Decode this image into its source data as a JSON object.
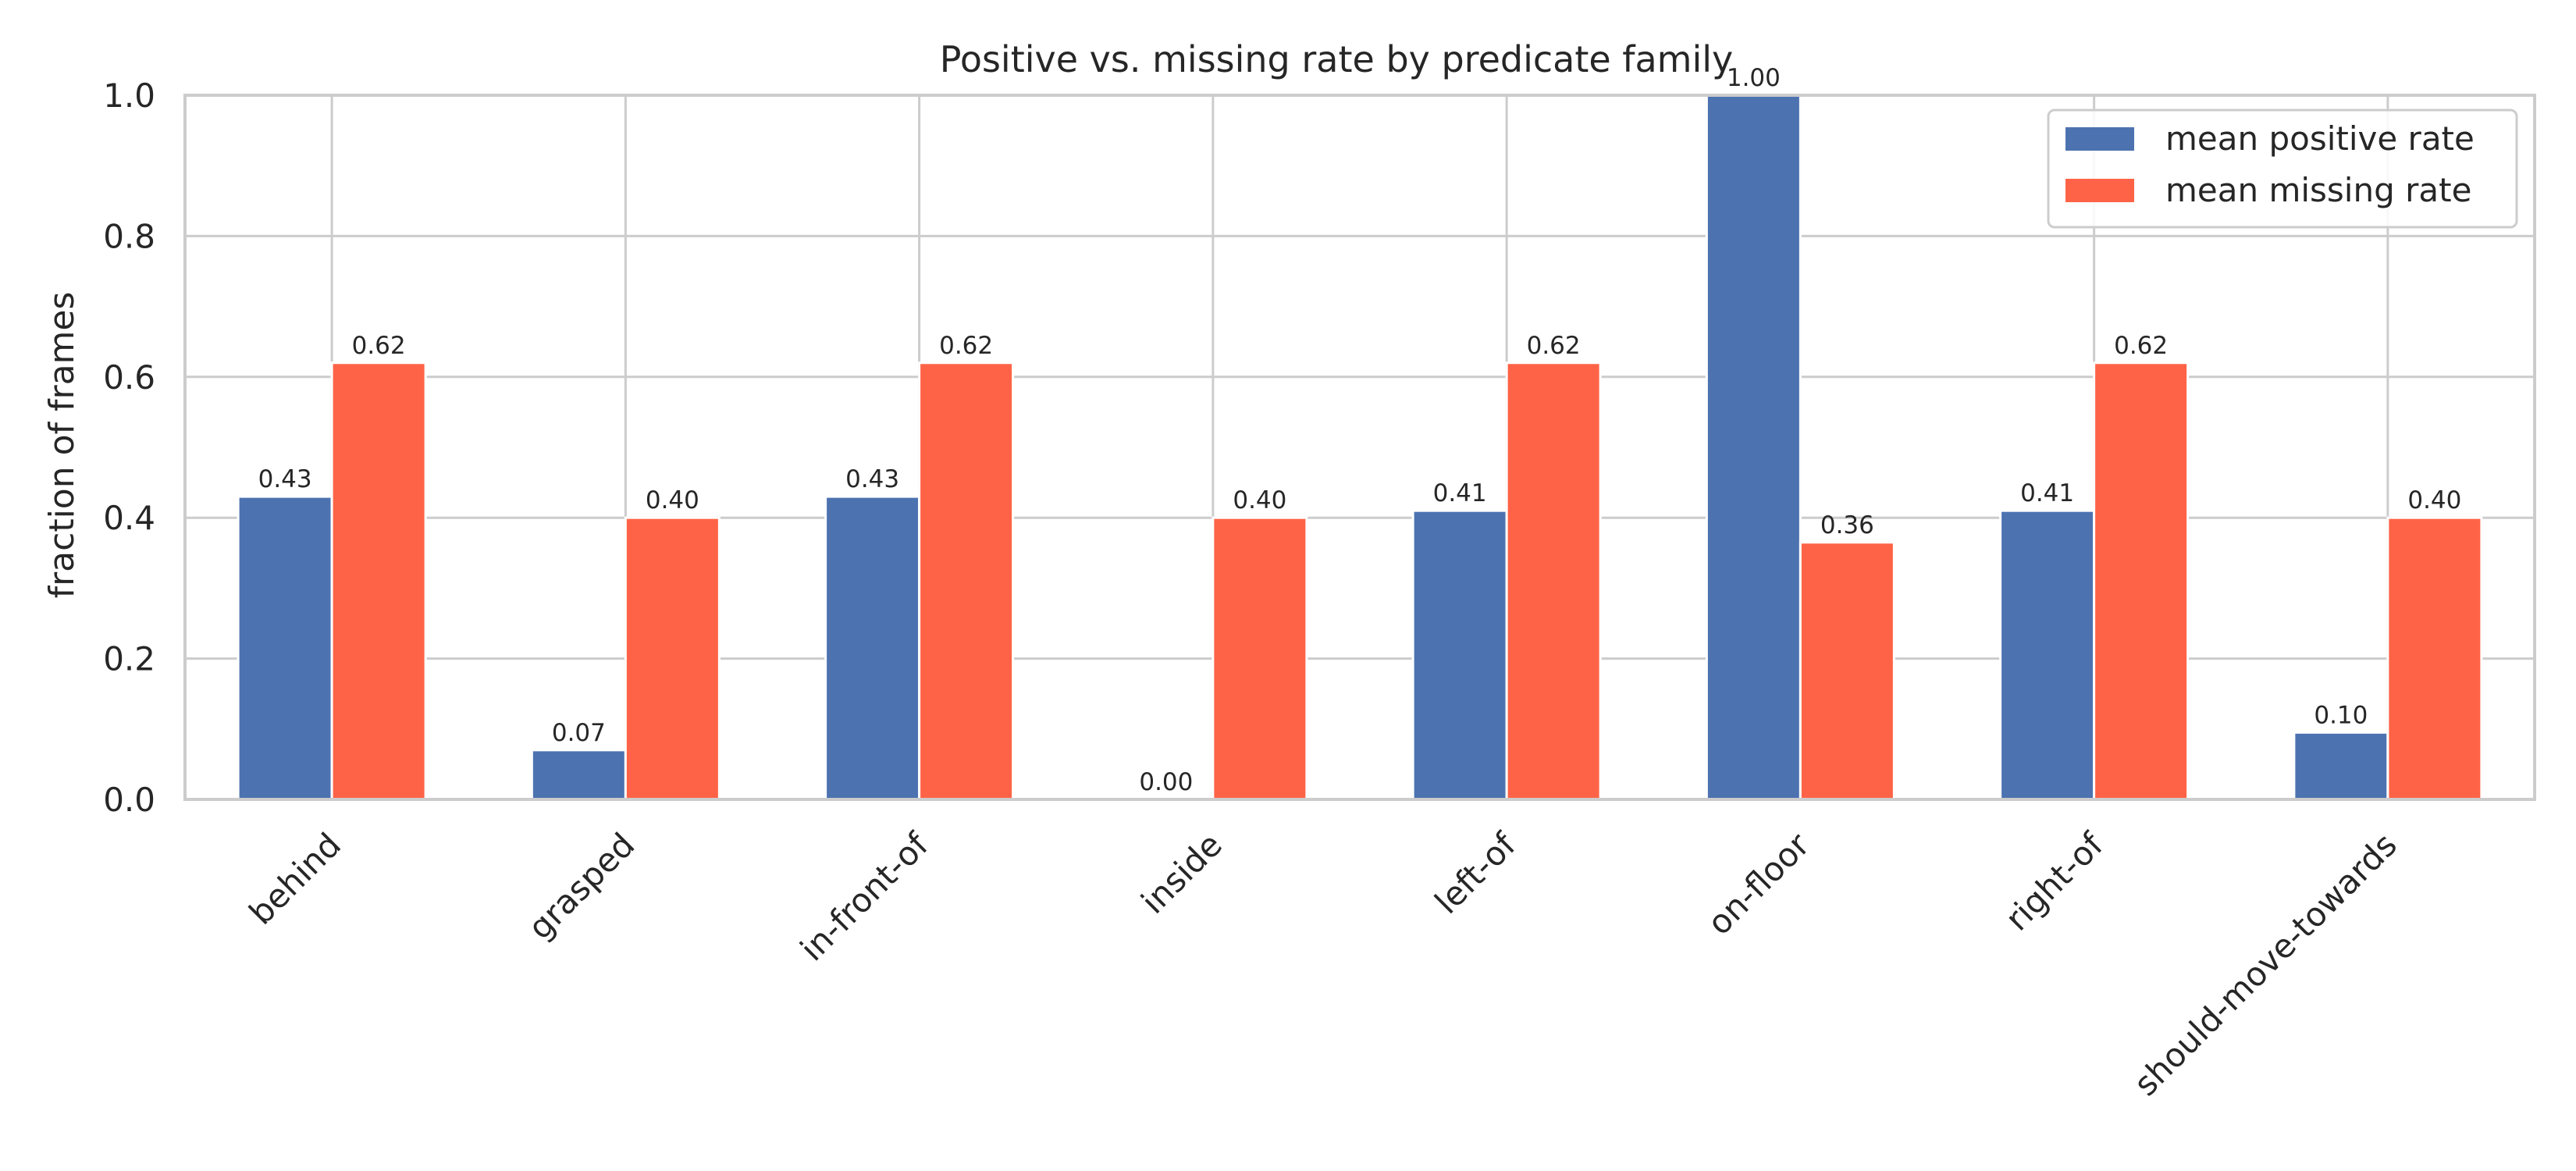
{
  "chart_data": {
    "type": "bar",
    "title": "Positive vs. missing rate by predicate family",
    "xlabel": "",
    "ylabel": "fraction of frames",
    "ylim": [
      0,
      1.0
    ],
    "yticks": [
      "0.0",
      "0.2",
      "0.4",
      "0.6",
      "0.8",
      "1.0"
    ],
    "grid": true,
    "legend_position": "top-right",
    "categories": [
      "behind",
      "grasped",
      "in-front-of",
      "inside",
      "left-of",
      "on-floor",
      "right-of",
      "should-move-towards"
    ],
    "series": [
      {
        "name": "mean positive rate",
        "color": "#4c72b0",
        "values": [
          0.43,
          0.07,
          0.43,
          0.0,
          0.41,
          1.0,
          0.41,
          0.095
        ],
        "labels": [
          "0.43",
          "0.07",
          "0.43",
          "0.00",
          "0.41",
          "1.00",
          "0.41",
          "0.10"
        ]
      },
      {
        "name": "mean missing rate",
        "color": "#ff6347",
        "values": [
          0.62,
          0.4,
          0.62,
          0.4,
          0.62,
          0.365,
          0.62,
          0.4
        ],
        "labels": [
          "0.62",
          "0.40",
          "0.62",
          "0.40",
          "0.62",
          "0.36",
          "0.62",
          "0.40"
        ]
      }
    ]
  }
}
